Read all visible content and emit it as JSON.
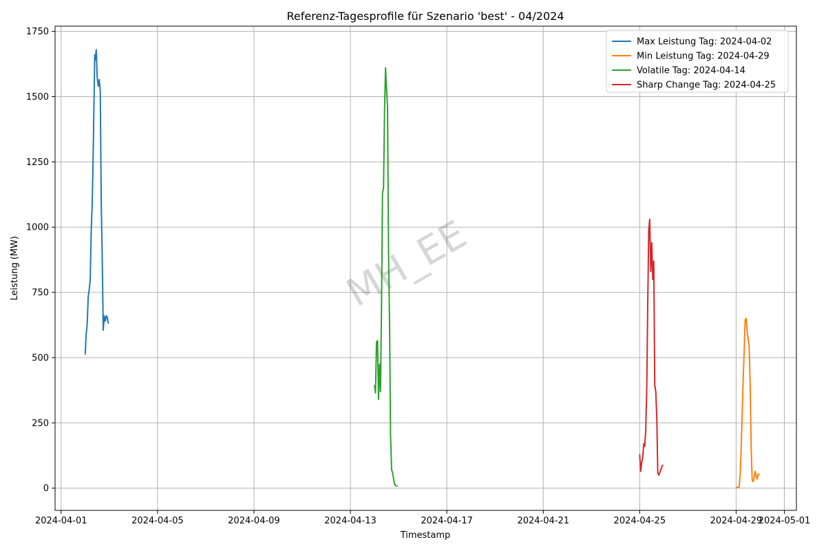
{
  "chart_data": {
    "type": "line",
    "title": "Referenz-Tagesprofile für Szenario 'best' - 04/2024",
    "xlabel": "Timestamp",
    "ylabel": "Leistung (MW)",
    "watermark": "MH_EE",
    "grid": true,
    "legend_position": "top-right",
    "x_range": [
      "2024-03-31T18:00",
      "2024-05-01T12:00"
    ],
    "ylim": [
      -85,
      1770
    ],
    "x_ticks": [
      {
        "value": "2024-04-01",
        "label": "2024-04-01"
      },
      {
        "value": "2024-04-05",
        "label": "2024-04-05"
      },
      {
        "value": "2024-04-09",
        "label": "2024-04-09"
      },
      {
        "value": "2024-04-13",
        "label": "2024-04-13"
      },
      {
        "value": "2024-04-17",
        "label": "2024-04-17"
      },
      {
        "value": "2024-04-21",
        "label": "2024-04-21"
      },
      {
        "value": "2024-04-25",
        "label": "2024-04-25"
      },
      {
        "value": "2024-04-29",
        "label": "2024-04-29"
      },
      {
        "value": "2024-05-01",
        "label": "2024-05-01"
      }
    ],
    "y_ticks": [
      0,
      250,
      500,
      750,
      1000,
      1250,
      1500,
      1750
    ],
    "series": [
      {
        "name": "Max Leistung Tag: 2024-04-02",
        "color": "#1f77b4",
        "x": [
          "2024-04-02T00:00",
          "2024-04-02T01:00",
          "2024-04-02T02:00",
          "2024-04-02T03:00",
          "2024-04-02T04:00",
          "2024-04-02T05:00",
          "2024-04-02T06:00",
          "2024-04-02T07:00",
          "2024-04-02T08:00",
          "2024-04-02T09:00",
          "2024-04-02T09:30",
          "2024-04-02T10:00",
          "2024-04-02T11:00",
          "2024-04-02T12:00",
          "2024-04-02T13:00",
          "2024-04-02T14:00",
          "2024-04-02T15:00",
          "2024-04-02T16:00",
          "2024-04-02T17:00",
          "2024-04-02T18:00",
          "2024-04-02T19:00",
          "2024-04-02T20:00",
          "2024-04-02T21:00",
          "2024-04-02T22:00",
          "2024-04-02T23:00"
        ],
        "y": [
          512,
          590,
          630,
          735,
          760,
          800,
          985,
          1090,
          1300,
          1530,
          1660,
          1640,
          1680,
          1570,
          1540,
          1565,
          1520,
          1090,
          870,
          605,
          660,
          640,
          660,
          655,
          630
        ]
      },
      {
        "name": "Min Leistung Tag: 2024-04-29",
        "color": "#ff7f0e",
        "x": [
          "2024-04-29T00:00",
          "2024-04-29T01:00",
          "2024-04-29T02:00",
          "2024-04-29T03:00",
          "2024-04-29T04:00",
          "2024-04-29T05:00",
          "2024-04-29T06:00",
          "2024-04-29T07:00",
          "2024-04-29T08:00",
          "2024-04-29T09:00",
          "2024-04-29T10:00",
          "2024-04-29T11:00",
          "2024-04-29T12:00",
          "2024-04-29T13:00",
          "2024-04-29T14:00",
          "2024-04-29T15:00",
          "2024-04-29T16:00",
          "2024-04-29T17:00",
          "2024-04-29T18:00",
          "2024-04-29T19:00",
          "2024-04-29T20:00",
          "2024-04-29T21:00",
          "2024-04-29T22:00",
          "2024-04-29T23:00"
        ],
        "y": [
          5,
          2,
          3,
          5,
          50,
          150,
          280,
          420,
          520,
          645,
          650,
          600,
          570,
          540,
          390,
          150,
          30,
          25,
          40,
          65,
          45,
          35,
          55,
          50
        ]
      },
      {
        "name": "Volatile Tag: 2024-04-14",
        "color": "#2ca02c",
        "x": [
          "2024-04-14T00:00",
          "2024-04-14T01:00",
          "2024-04-14T02:00",
          "2024-04-14T03:00",
          "2024-04-14T04:00",
          "2024-04-14T05:00",
          "2024-04-14T06:00",
          "2024-04-14T07:00",
          "2024-04-14T08:00",
          "2024-04-14T09:00",
          "2024-04-14T10:00",
          "2024-04-14T11:00",
          "2024-04-14T12:00",
          "2024-04-14T13:00",
          "2024-04-14T14:00",
          "2024-04-14T15:00",
          "2024-04-14T16:00",
          "2024-04-14T17:00",
          "2024-04-14T18:00",
          "2024-04-14T19:00",
          "2024-04-14T20:00",
          "2024-04-14T21:00",
          "2024-04-14T22:00",
          "2024-04-14T23:00"
        ],
        "y": [
          395,
          365,
          560,
          565,
          340,
          475,
          370,
          700,
          1130,
          1150,
          1450,
          1610,
          1530,
          1460,
          900,
          620,
          200,
          70,
          60,
          35,
          15,
          10,
          8,
          8
        ]
      },
      {
        "name": "Sharp Change Tag: 2024-04-25",
        "color": "#d62728",
        "x": [
          "2024-04-25T00:00",
          "2024-04-25T01:00",
          "2024-04-25T02:00",
          "2024-04-25T03:00",
          "2024-04-25T04:00",
          "2024-04-25T05:00",
          "2024-04-25T06:00",
          "2024-04-25T07:00",
          "2024-04-25T08:00",
          "2024-04-25T09:00",
          "2024-04-25T10:00",
          "2024-04-25T11:00",
          "2024-04-25T12:00",
          "2024-04-25T13:00",
          "2024-04-25T14:00",
          "2024-04-25T15:00",
          "2024-04-25T16:00",
          "2024-04-25T17:00",
          "2024-04-25T18:00",
          "2024-04-25T19:00",
          "2024-04-25T20:00",
          "2024-04-25T21:00",
          "2024-04-25T22:00",
          "2024-04-25T23:00"
        ],
        "y": [
          130,
          65,
          100,
          115,
          170,
          160,
          220,
          380,
          700,
          990,
          1030,
          830,
          940,
          800,
          870,
          395,
          370,
          270,
          60,
          50,
          60,
          70,
          80,
          90
        ]
      }
    ]
  }
}
